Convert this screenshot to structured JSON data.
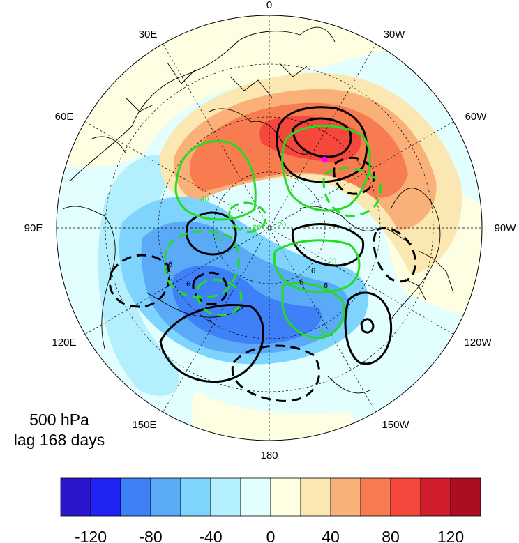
{
  "map": {
    "projection": "polar stereographic (north pole)",
    "longitude_labels": [
      "0",
      "30W",
      "60W",
      "90W",
      "120W",
      "150W",
      "180",
      "150E",
      "120E",
      "90E",
      "60E",
      "30E"
    ],
    "contour_label_green": [
      "40",
      "40",
      "20",
      "20",
      "20",
      "20",
      "40",
      "20"
    ],
    "contour_label_black": [
      "6",
      "6",
      "6",
      "6",
      "6",
      "6"
    ],
    "marker_color": "#ff00ff"
  },
  "caption": {
    "level": "500 hPa",
    "lag": "lag 168 days"
  },
  "colorbar": {
    "colors": [
      "#2a16cc",
      "#1f24f5",
      "#3e80f7",
      "#5aaaf8",
      "#7ed4fc",
      "#b3effd",
      "#e2fefe",
      "#fefee2",
      "#fbe7b1",
      "#f9b079",
      "#f77c50",
      "#f5473b",
      "#d11c2c",
      "#a90e22"
    ],
    "tick_labels": [
      "-120",
      "-80",
      "-40",
      "0",
      "40",
      "80",
      "120"
    ]
  }
}
